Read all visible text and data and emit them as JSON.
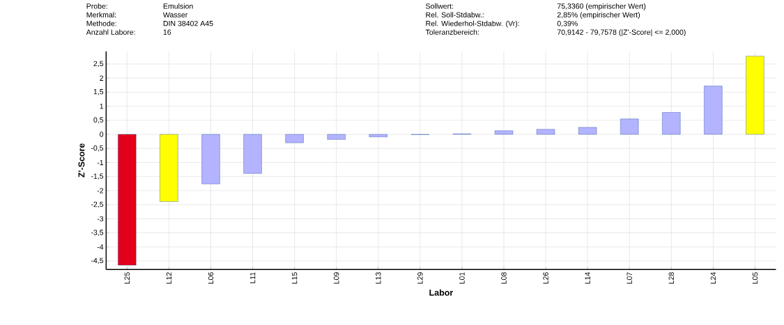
{
  "chart_data": {
    "type": "bar",
    "xlabel": "Labor",
    "ylabel": "Z'-Score",
    "annotations": [
      "Probe:",
      "Emulsion",
      "Merkmal:",
      "Wasser",
      "Methode:",
      "DIN 38402 A45",
      "Anzahl Labore:",
      "16",
      "Sollwert:",
      "75,3360  (empirischer Wert)",
      "Rel. Soll-Stdabw.:",
      "2,85% (empirischer Wert)",
      "Rel. Wiederhol-Stdabw. (Vr):",
      "0,39%",
      "Toleranzbereich:",
      "70,9142 - 79,7578  (|Z'-Score| <= 2,000)"
    ],
    "categories": [
      "L25",
      "L12",
      "L06",
      "L11",
      "L15",
      "L09",
      "L13",
      "L29",
      "L01",
      "L08",
      "L26",
      "L14",
      "L07",
      "L28",
      "L24",
      "L05"
    ],
    "values": [
      -4.65,
      -2.39,
      -1.76,
      -1.39,
      -0.3,
      -0.18,
      -0.09,
      -0.01,
      0.02,
      0.13,
      0.18,
      0.25,
      0.55,
      0.78,
      1.72,
      2.78
    ],
    "colors": [
      "#e2001a",
      "#ffff00",
      "#b3b3ff",
      "#b3b3ff",
      "#b3b3ff",
      "#b3b3ff",
      "#b3b3ff",
      "#b3b3ff",
      "#b3b3ff",
      "#b3b3ff",
      "#b3b3ff",
      "#b3b3ff",
      "#b3b3ff",
      "#b3b3ff",
      "#b3b3ff",
      "#ffff00"
    ],
    "ylim": [
      -4.8,
      2.95
    ],
    "yticks": [
      {
        "value": -4.5,
        "label": "-4,5"
      },
      {
        "value": -4,
        "label": "-4"
      },
      {
        "value": -3.5,
        "label": "-3,5"
      },
      {
        "value": -3,
        "label": "-3"
      },
      {
        "value": -2.5,
        "label": "-2,5"
      },
      {
        "value": -2,
        "label": "-2"
      },
      {
        "value": -1.5,
        "label": "-1,5"
      },
      {
        "value": -1,
        "label": "-1"
      },
      {
        "value": -0.5,
        "label": "-0,5"
      },
      {
        "value": 0,
        "label": "0"
      },
      {
        "value": 0.5,
        "label": "0,5"
      },
      {
        "value": 1,
        "label": "1"
      },
      {
        "value": 1.5,
        "label": "1,5"
      },
      {
        "value": 2,
        "label": "2"
      },
      {
        "value": 2.5,
        "label": "2,5"
      }
    ],
    "grid": true
  }
}
